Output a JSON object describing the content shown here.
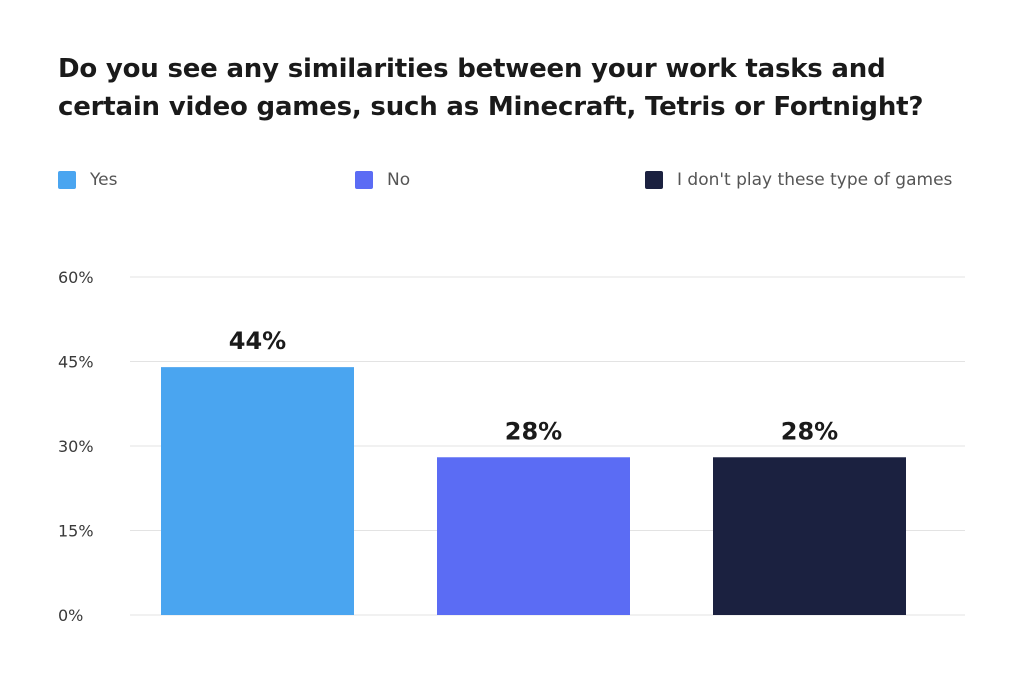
{
  "chart_data": {
    "type": "bar",
    "title": "Do you see any similarities between your work tasks and certain video games, such as Minecraft, Tetris or Fortnight?",
    "categories": [
      "Yes",
      "No",
      "I don't play these type of games"
    ],
    "values": [
      44,
      28,
      28
    ],
    "data_labels": [
      "44%",
      "28%",
      "28%"
    ],
    "colors": [
      "#4aa5f0",
      "#5b6cf4",
      "#1b2140"
    ],
    "ylim": [
      0,
      60
    ],
    "yticks": [
      0,
      15,
      30,
      45,
      60
    ],
    "ytick_labels": [
      "0%",
      "15%",
      "30%",
      "45%",
      "60%"
    ],
    "grid": true,
    "legend_position": "top"
  }
}
